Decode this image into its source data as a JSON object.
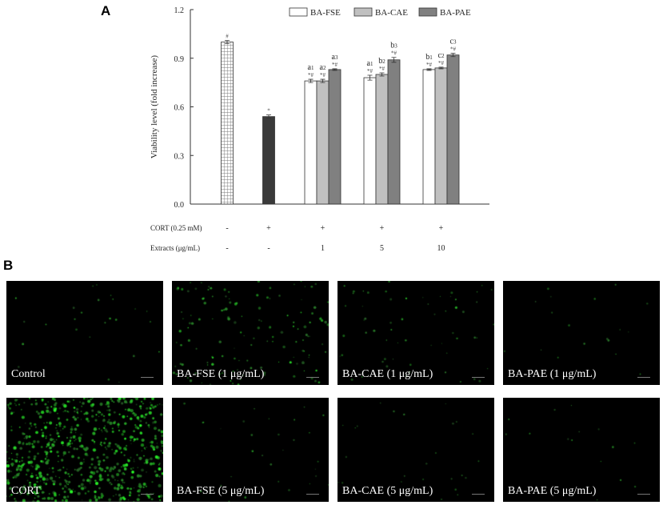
{
  "panel_labels": {
    "a": "A",
    "b": "B"
  },
  "chart_data": {
    "type": "bar",
    "ylabel": "Viability level (fold increase)",
    "ylim": [
      0,
      1.2
    ],
    "yticks": [
      "0.0",
      "0.3",
      "0.6",
      "0.9",
      "1.2"
    ],
    "legend": [
      "BA-FSE",
      "BA-CAE",
      "BA-PAE"
    ],
    "legend_position": "top-right",
    "colors": {
      "fse": "#ffffff",
      "cae": "#c0c0c0",
      "pae": "#808080",
      "cort": "#3a3a3a",
      "control_pattern": "#7a7a7a"
    },
    "control": {
      "value": 1.0,
      "err": 0.01,
      "mark": "#"
    },
    "cort": {
      "value": 0.54,
      "err": 0.01,
      "mark": "*"
    },
    "groups": [
      {
        "dose": "1",
        "fse": {
          "value": 0.76,
          "err": 0.01,
          "letter": "a",
          "sub": "1",
          "mark": "*#"
        },
        "cae": {
          "value": 0.76,
          "err": 0.01,
          "letter": "a",
          "sub": "2",
          "mark": "*#"
        },
        "pae": {
          "value": 0.83,
          "err": 0.005,
          "letter": "a",
          "sub": "3",
          "mark": "*#"
        }
      },
      {
        "dose": "5",
        "fse": {
          "value": 0.78,
          "err": 0.015,
          "letter": "a",
          "sub": "1",
          "mark": "*#"
        },
        "cae": {
          "value": 0.8,
          "err": 0.01,
          "letter": "b",
          "sub": "2",
          "mark": "*#"
        },
        "pae": {
          "value": 0.89,
          "err": 0.015,
          "letter": "b",
          "sub": "3",
          "mark": "*#"
        }
      },
      {
        "dose": "10",
        "fse": {
          "value": 0.83,
          "err": 0.005,
          "letter": "b",
          "sub": "1",
          "mark": "*#"
        },
        "cae": {
          "value": 0.84,
          "err": 0.005,
          "letter": "c",
          "sub": "2",
          "mark": "*#"
        },
        "pae": {
          "value": 0.92,
          "err": 0.01,
          "letter": "c",
          "sub": "3",
          "mark": "*#"
        }
      }
    ],
    "treatment_rows": [
      {
        "label": "CORT (0.25 mM)",
        "values": [
          "-",
          "+",
          "+",
          "+",
          "+"
        ]
      },
      {
        "label": "Extracts (μg/mL)",
        "values": [
          "-",
          "-",
          "1",
          "5",
          "10"
        ]
      }
    ]
  },
  "micrographs": [
    {
      "caption": "Control",
      "density": 25,
      "brightness": 0.55
    },
    {
      "caption": "BA-FSE (1 μg/mL)",
      "density": 140,
      "brightness": 0.8
    },
    {
      "caption": "BA-CAE (1 μg/mL)",
      "density": 60,
      "brightness": 0.6
    },
    {
      "caption": "BA-PAE (1 μg/mL)",
      "density": 18,
      "brightness": 0.5
    },
    {
      "caption": "CORT",
      "density": 700,
      "brightness": 1.0
    },
    {
      "caption": "BA-FSE (5 μg/mL)",
      "density": 30,
      "brightness": 0.5
    },
    {
      "caption": "BA-CAE (5 μg/mL)",
      "density": 25,
      "brightness": 0.5
    },
    {
      "caption": "BA-PAE (5 μg/mL)",
      "density": 15,
      "brightness": 0.45
    }
  ]
}
